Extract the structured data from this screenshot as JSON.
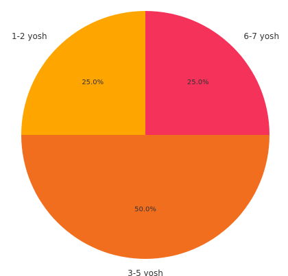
{
  "chart_data": {
    "type": "pie",
    "categories": [
      "6-7 yosh",
      "3-5 yosh",
      "1-2 yosh"
    ],
    "values": [
      25.0,
      50.0,
      25.0
    ],
    "percent_labels": [
      "25.0%",
      "50.0%",
      "25.0%"
    ],
    "colors": [
      "#f5325a",
      "#f26e1f",
      "#ffa500"
    ],
    "start_angle_deg": 90,
    "direction": "clockwise"
  }
}
